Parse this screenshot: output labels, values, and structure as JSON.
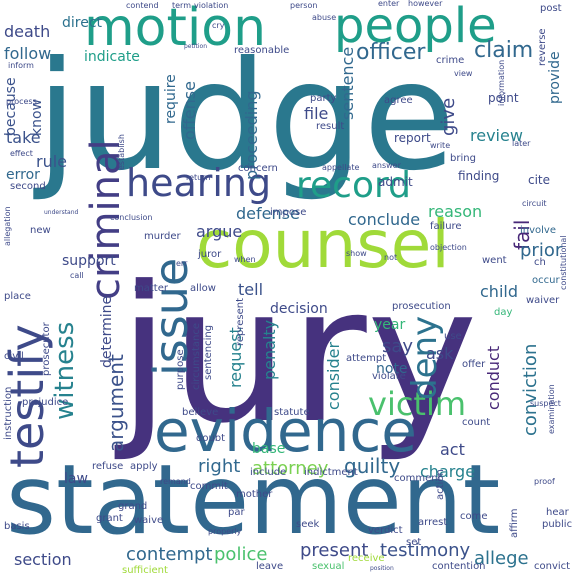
{
  "colors": {
    "background": "#ffffff",
    "palette": [
      "#440154",
      "#46337e",
      "#365c8d",
      "#277f8e",
      "#1fa187",
      "#4ac16d",
      "#a0da39",
      "#fde725"
    ]
  },
  "words": [
    {
      "text": "jury",
      "color": "#46327e"
    },
    {
      "text": "judge",
      "color": "#2a788e"
    },
    {
      "text": "statement",
      "color": "#31688e"
    },
    {
      "text": "counsel",
      "color": "#a0da39"
    },
    {
      "text": "evidence",
      "color": "#31688e"
    },
    {
      "text": "motion",
      "color": "#1f9e89"
    },
    {
      "text": "people",
      "color": "#1f9e89"
    },
    {
      "text": "hearing",
      "color": "#3e4a89"
    },
    {
      "text": "testify",
      "color": "#3e4a89"
    },
    {
      "text": "criminal",
      "color": "#433e85"
    },
    {
      "text": "issue",
      "color": "#31688e"
    },
    {
      "text": "record",
      "color": "#1f9e89"
    },
    {
      "text": "victim",
      "color": "#4ac16d"
    },
    {
      "text": "deny",
      "color": "#2c728e"
    },
    {
      "text": "witness",
      "color": "#26828e"
    },
    {
      "text": "officer",
      "color": "#31688e"
    },
    {
      "text": "claim",
      "color": "#31688e"
    },
    {
      "text": "argument",
      "color": "#3b528b"
    },
    {
      "text": "attorney",
      "color": "#7ad151"
    },
    {
      "text": "guilty",
      "color": "#31688e"
    },
    {
      "text": "testimony",
      "color": "#3b528b"
    },
    {
      "text": "contempt",
      "color": "#31688e"
    },
    {
      "text": "police",
      "color": "#4ac16d"
    },
    {
      "text": "present",
      "color": "#3e4a89"
    },
    {
      "text": "section",
      "color": "#3e4a89"
    },
    {
      "text": "allege",
      "color": "#2c728e"
    },
    {
      "text": "charge",
      "color": "#26828e"
    },
    {
      "text": "right",
      "color": "#31688e"
    },
    {
      "text": "conclude",
      "color": "#31688e"
    },
    {
      "text": "reason",
      "color": "#35b779"
    },
    {
      "text": "defense",
      "color": "#31688e"
    },
    {
      "text": "argue",
      "color": "#3e4a89"
    },
    {
      "text": "rule",
      "color": "#3b528b"
    },
    {
      "text": "follow",
      "color": "#31688e"
    },
    {
      "text": "death",
      "color": "#3e4a89"
    },
    {
      "text": "direct",
      "color": "#2c728e"
    },
    {
      "text": "indicate",
      "color": "#1f9e89"
    },
    {
      "text": "review",
      "color": "#26828e"
    },
    {
      "text": "sentence",
      "color": "#31688e"
    },
    {
      "text": "give",
      "color": "#3e4a89"
    },
    {
      "text": "provide",
      "color": "#31688e"
    },
    {
      "text": "fail",
      "color": "#482878"
    },
    {
      "text": "prior",
      "color": "#31688e"
    },
    {
      "text": "decision",
      "color": "#3e4a89"
    },
    {
      "text": "penalty",
      "color": "#26828e"
    },
    {
      "text": "request",
      "color": "#26828e"
    },
    {
      "text": "consider",
      "color": "#26828e"
    },
    {
      "text": "conviction",
      "color": "#2c728e"
    },
    {
      "text": "conduct",
      "color": "#482878"
    },
    {
      "text": "say",
      "color": "#3e4a89"
    },
    {
      "text": "ask",
      "color": "#3e4a89"
    },
    {
      "text": "year",
      "color": "#35b779"
    },
    {
      "text": "note",
      "color": "#31688e"
    },
    {
      "text": "tell",
      "color": "#3b528b"
    },
    {
      "text": "child",
      "color": "#31688e"
    },
    {
      "text": "act",
      "color": "#3e4a89"
    },
    {
      "text": "file",
      "color": "#3e4a89"
    },
    {
      "text": "offense",
      "color": "#31688e"
    },
    {
      "text": "proceeding",
      "color": "#31688e"
    },
    {
      "text": "require",
      "color": "#31688e"
    },
    {
      "text": "error",
      "color": "#31688e"
    },
    {
      "text": "take",
      "color": "#3b528b"
    },
    {
      "text": "know",
      "color": "#3b528b"
    },
    {
      "text": "because",
      "color": "#3b528b"
    },
    {
      "text": "support",
      "color": "#3e4a89"
    },
    {
      "text": "law",
      "color": "#3e4a89"
    },
    {
      "text": "base",
      "color": "#35b779"
    },
    {
      "text": "determine",
      "color": "#3e4a89"
    },
    {
      "text": "report",
      "color": "#3e4a89"
    },
    {
      "text": "admit",
      "color": "#3e4a89"
    },
    {
      "text": "finding",
      "color": "#3e4a89"
    },
    {
      "text": "cite",
      "color": "#3e4a89"
    },
    {
      "text": "point",
      "color": "#3e4a89"
    },
    {
      "text": "agree",
      "color": "#3e4a89"
    },
    {
      "text": "second",
      "color": "#3e4a89"
    },
    {
      "text": "juror",
      "color": "#3e4a89"
    },
    {
      "text": "murder",
      "color": "#3e4a89"
    },
    {
      "text": "grand",
      "color": "#3e4a89"
    },
    {
      "text": "waive",
      "color": "#3e4a89"
    },
    {
      "text": "seek",
      "color": "#3e4a89"
    },
    {
      "text": "par",
      "color": "#3e4a89"
    },
    {
      "text": "involve",
      "color": "#31688e"
    },
    {
      "text": "occur",
      "color": "#31688e"
    },
    {
      "text": "day",
      "color": "#35b779"
    },
    {
      "text": "reasonable",
      "color": "#3e4a89"
    },
    {
      "text": "party",
      "color": "#3e4a89"
    },
    {
      "text": "result",
      "color": "#3e4a89"
    },
    {
      "text": "concern",
      "color": "#3e4a89"
    },
    {
      "text": "impose",
      "color": "#3e4a89"
    },
    {
      "text": "matter",
      "color": "#3e4a89"
    },
    {
      "text": "allow",
      "color": "#3e4a89"
    },
    {
      "text": "place",
      "color": "#3e4a89"
    },
    {
      "text": "civil",
      "color": "#3e4a89"
    },
    {
      "text": "instruction",
      "color": "#3e4a89"
    },
    {
      "text": "prejudice",
      "color": "#3e4a89"
    },
    {
      "text": "believe",
      "color": "#3e4a89"
    },
    {
      "text": "statute",
      "color": "#3e4a89"
    },
    {
      "text": "include",
      "color": "#3e4a89"
    },
    {
      "text": "indictment",
      "color": "#3e4a89"
    },
    {
      "text": "comment",
      "color": "#3e4a89"
    },
    {
      "text": "action",
      "color": "#3e4a89"
    },
    {
      "text": "come",
      "color": "#3e4a89"
    },
    {
      "text": "leave",
      "color": "#3e4a89"
    },
    {
      "text": "sexual",
      "color": "#4ac16d"
    },
    {
      "text": "receive",
      "color": "#a0da39"
    },
    {
      "text": "convict",
      "color": "#3e4a89"
    },
    {
      "text": "contention",
      "color": "#3e4a89"
    },
    {
      "text": "set",
      "color": "#3e4a89"
    },
    {
      "text": "verdict",
      "color": "#3e4a89"
    },
    {
      "text": "arrest",
      "color": "#3e4a89"
    },
    {
      "text": "grant",
      "color": "#3e4a89"
    },
    {
      "text": "properly",
      "color": "#3e4a89"
    },
    {
      "text": "sufficient",
      "color": "#a0da39"
    },
    {
      "text": "basis",
      "color": "#3e4a89"
    },
    {
      "text": "commit",
      "color": "#3e4a89"
    },
    {
      "text": "mother",
      "color": "#3e4a89"
    },
    {
      "text": "doubt",
      "color": "#3e4a89"
    },
    {
      "text": "refuse",
      "color": "#3e4a89"
    },
    {
      "text": "apply",
      "color": "#3e4a89"
    },
    {
      "text": "remand",
      "color": "#3e4a89"
    },
    {
      "text": "purpose",
      "color": "#3e4a89"
    },
    {
      "text": "sentencing",
      "color": "#3e4a89"
    },
    {
      "text": "represent",
      "color": "#3e4a89"
    },
    {
      "text": "circumstance",
      "color": "#3e4a89"
    },
    {
      "text": "prosecutor",
      "color": "#3e4a89"
    },
    {
      "text": "prosecution",
      "color": "#3e4a89"
    },
    {
      "text": "attempt",
      "color": "#3e4a89"
    },
    {
      "text": "violate",
      "color": "#3e4a89"
    },
    {
      "text": "count",
      "color": "#3e4a89"
    },
    {
      "text": "use",
      "color": "#3e4a89"
    },
    {
      "text": "offer",
      "color": "#3e4a89"
    },
    {
      "text": "waiver",
      "color": "#3e4a89"
    },
    {
      "text": "went",
      "color": "#3e4a89"
    },
    {
      "text": "failure",
      "color": "#3e4a89"
    },
    {
      "text": "action",
      "color": "#3e4a89"
    },
    {
      "text": "objection",
      "color": "#3e4a89"
    },
    {
      "text": "new",
      "color": "#3e4a89"
    },
    {
      "text": "conclusion",
      "color": "#3e4a89"
    },
    {
      "text": "establish",
      "color": "#3e4a89"
    },
    {
      "text": "return",
      "color": "#3e4a89"
    },
    {
      "text": "appellate",
      "color": "#3e4a89"
    },
    {
      "text": "bring",
      "color": "#3e4a89"
    },
    {
      "text": "constitutional",
      "color": "#3e4a89"
    },
    {
      "text": "circuit",
      "color": "#3e4a89"
    },
    {
      "text": "information",
      "color": "#3e4a89"
    },
    {
      "text": "reverse",
      "color": "#3e4a89"
    },
    {
      "text": "post",
      "color": "#3e4a89"
    },
    {
      "text": "view",
      "color": "#3e4a89"
    },
    {
      "text": "crime",
      "color": "#3e4a89"
    },
    {
      "text": "abuse",
      "color": "#3e4a89"
    },
    {
      "text": "person",
      "color": "#3e4a89"
    },
    {
      "text": "enter",
      "color": "#3e4a89"
    },
    {
      "text": "however",
      "color": "#3e4a89"
    },
    {
      "text": "term",
      "color": "#3e4a89"
    },
    {
      "text": "violation",
      "color": "#3e4a89"
    },
    {
      "text": "contend",
      "color": "#3e4a89"
    },
    {
      "text": "process",
      "color": "#3e4a89"
    },
    {
      "text": "effect",
      "color": "#3e4a89"
    },
    {
      "text": "allegation",
      "color": "#3e4a89"
    },
    {
      "text": "understand",
      "color": "#3e4a89"
    },
    {
      "text": "call",
      "color": "#3e4a89"
    },
    {
      "text": "err",
      "color": "#3e4a89"
    },
    {
      "text": "show",
      "color": "#3e4a89"
    },
    {
      "text": "cry",
      "color": "#3e4a89"
    },
    {
      "text": "petition",
      "color": "#3e4a89"
    },
    {
      "text": "examination",
      "color": "#3e4a89"
    },
    {
      "text": "suspect",
      "color": "#3e4a89"
    },
    {
      "text": "hear",
      "color": "#3e4a89"
    },
    {
      "text": "public",
      "color": "#3e4a89"
    },
    {
      "text": "proof",
      "color": "#3e4a89"
    },
    {
      "text": "affirm",
      "color": "#3e4a89"
    },
    {
      "text": "position",
      "color": "#3e4a89"
    },
    {
      "text": "when",
      "color": "#3e4a89"
    },
    {
      "text": "not",
      "color": "#3e4a89"
    },
    {
      "text": "ch",
      "color": "#3e4a89"
    },
    {
      "text": "answer",
      "color": "#3e4a89"
    },
    {
      "text": "write",
      "color": "#3e4a89"
    },
    {
      "text": "later",
      "color": "#3e4a89"
    },
    {
      "text": "inform",
      "color": "#3e4a89"
    }
  ]
}
